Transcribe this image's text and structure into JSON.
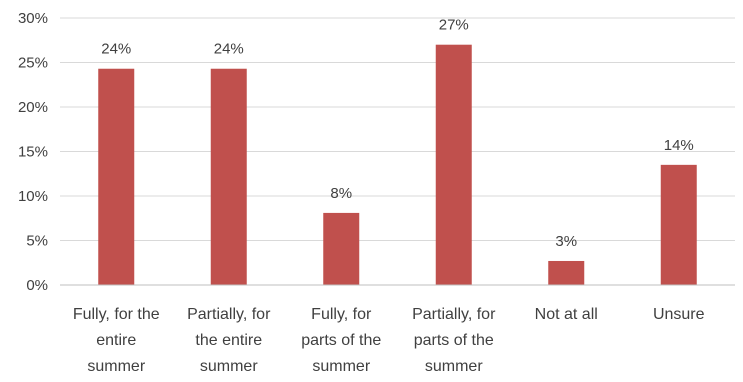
{
  "chart_data": {
    "type": "bar",
    "categories": [
      [
        "Fully, for the",
        "entire",
        "summer"
      ],
      [
        "Partially, for",
        "the entire",
        "summer"
      ],
      [
        "Fully, for",
        "parts of the",
        "summer"
      ],
      [
        "Partially, for",
        "parts of the",
        "summer"
      ],
      [
        "Not at all"
      ],
      [
        "Unsure"
      ]
    ],
    "values": [
      24.3,
      24.3,
      8.1,
      27.0,
      2.7,
      13.5
    ],
    "data_labels": [
      "24%",
      "24%",
      "8%",
      "27%",
      "3%",
      "14%"
    ],
    "y_ticks": [
      0,
      5,
      10,
      15,
      20,
      25,
      30
    ],
    "y_tick_labels": [
      "0%",
      "5%",
      "10%",
      "15%",
      "20%",
      "25%",
      "30%"
    ],
    "ylim": [
      0,
      30
    ],
    "grid": true,
    "bar_color": "#c0504d",
    "title": "",
    "xlabel": "",
    "ylabel": ""
  }
}
